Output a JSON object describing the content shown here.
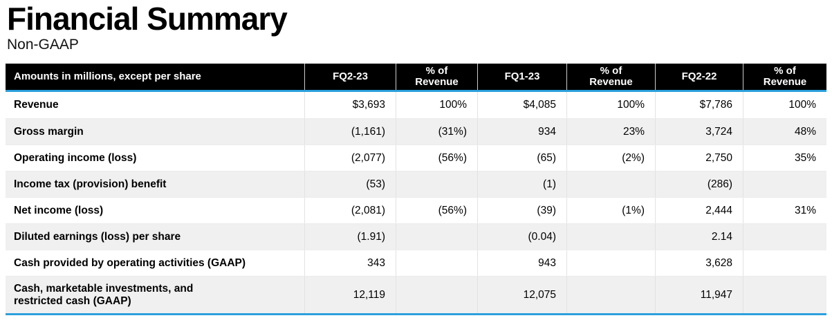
{
  "page": {
    "title": "Financial Summary",
    "subtitle": "Non-GAAP"
  },
  "colors": {
    "accent_blue": "#2BA0DC",
    "header_bg": "#000000",
    "header_text": "#FFFFFF",
    "alt_row_bg": "#F0F0F0",
    "grid_line": "#E2E2E2",
    "header_divider": "#CCCCCC"
  },
  "table": {
    "corner_label": "Amounts in millions, except per share",
    "columns": [
      "FQ2-23",
      "% of\nRevenue",
      "FQ1-23",
      "% of\nRevenue",
      "FQ2-22",
      "% of\nRevenue"
    ],
    "rows": [
      {
        "label": "Revenue",
        "values": [
          "$3,693",
          "100%",
          "$4,085",
          "100%",
          "$7,786",
          "100%"
        ]
      },
      {
        "label": "Gross margin",
        "values": [
          "(1,161)",
          "(31%)",
          "934",
          "23%",
          "3,724",
          "48%"
        ]
      },
      {
        "label": "Operating income (loss)",
        "values": [
          "(2,077)",
          "(56%)",
          "(65)",
          "(2%)",
          "2,750",
          "35%"
        ]
      },
      {
        "label": "Income tax (provision) benefit",
        "values": [
          "(53)",
          "",
          "(1)",
          "",
          "(286)",
          ""
        ]
      },
      {
        "label": "Net income (loss)",
        "values": [
          "(2,081)",
          "(56%)",
          "(39)",
          "(1%)",
          "2,444",
          "31%"
        ]
      },
      {
        "label": "Diluted earnings (loss) per share",
        "values": [
          "(1.91)",
          "",
          "(0.04)",
          "",
          "2.14",
          ""
        ]
      },
      {
        "label": "Cash provided by operating activities (GAAP)",
        "values": [
          "343",
          "",
          "943",
          "",
          "3,628",
          ""
        ]
      },
      {
        "label": "Cash, marketable investments, and\nrestricted cash (GAAP)",
        "values": [
          "12,119",
          "",
          "12,075",
          "",
          "11,947",
          ""
        ]
      }
    ]
  }
}
